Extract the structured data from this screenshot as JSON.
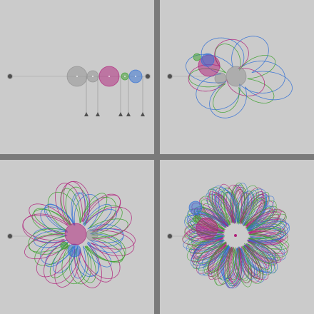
{
  "colors": {
    "background": "#cbcbcb",
    "divider": "#7a7a7a",
    "gray_body": "#8f8f8f",
    "magenta_body": "#b0207a",
    "green_body": "#3aa02a",
    "blue_body": "#2f6fd6",
    "pivot": "#505050",
    "marker": "#505050"
  },
  "panels": [
    {
      "id": "initial-configuration"
    },
    {
      "id": "early-trajectory"
    },
    {
      "id": "mid-trajectory"
    },
    {
      "id": "long-trajectory"
    }
  ],
  "icons": {
    "pivot": "pivot-icon",
    "marker": "triangle-marker-icon"
  }
}
